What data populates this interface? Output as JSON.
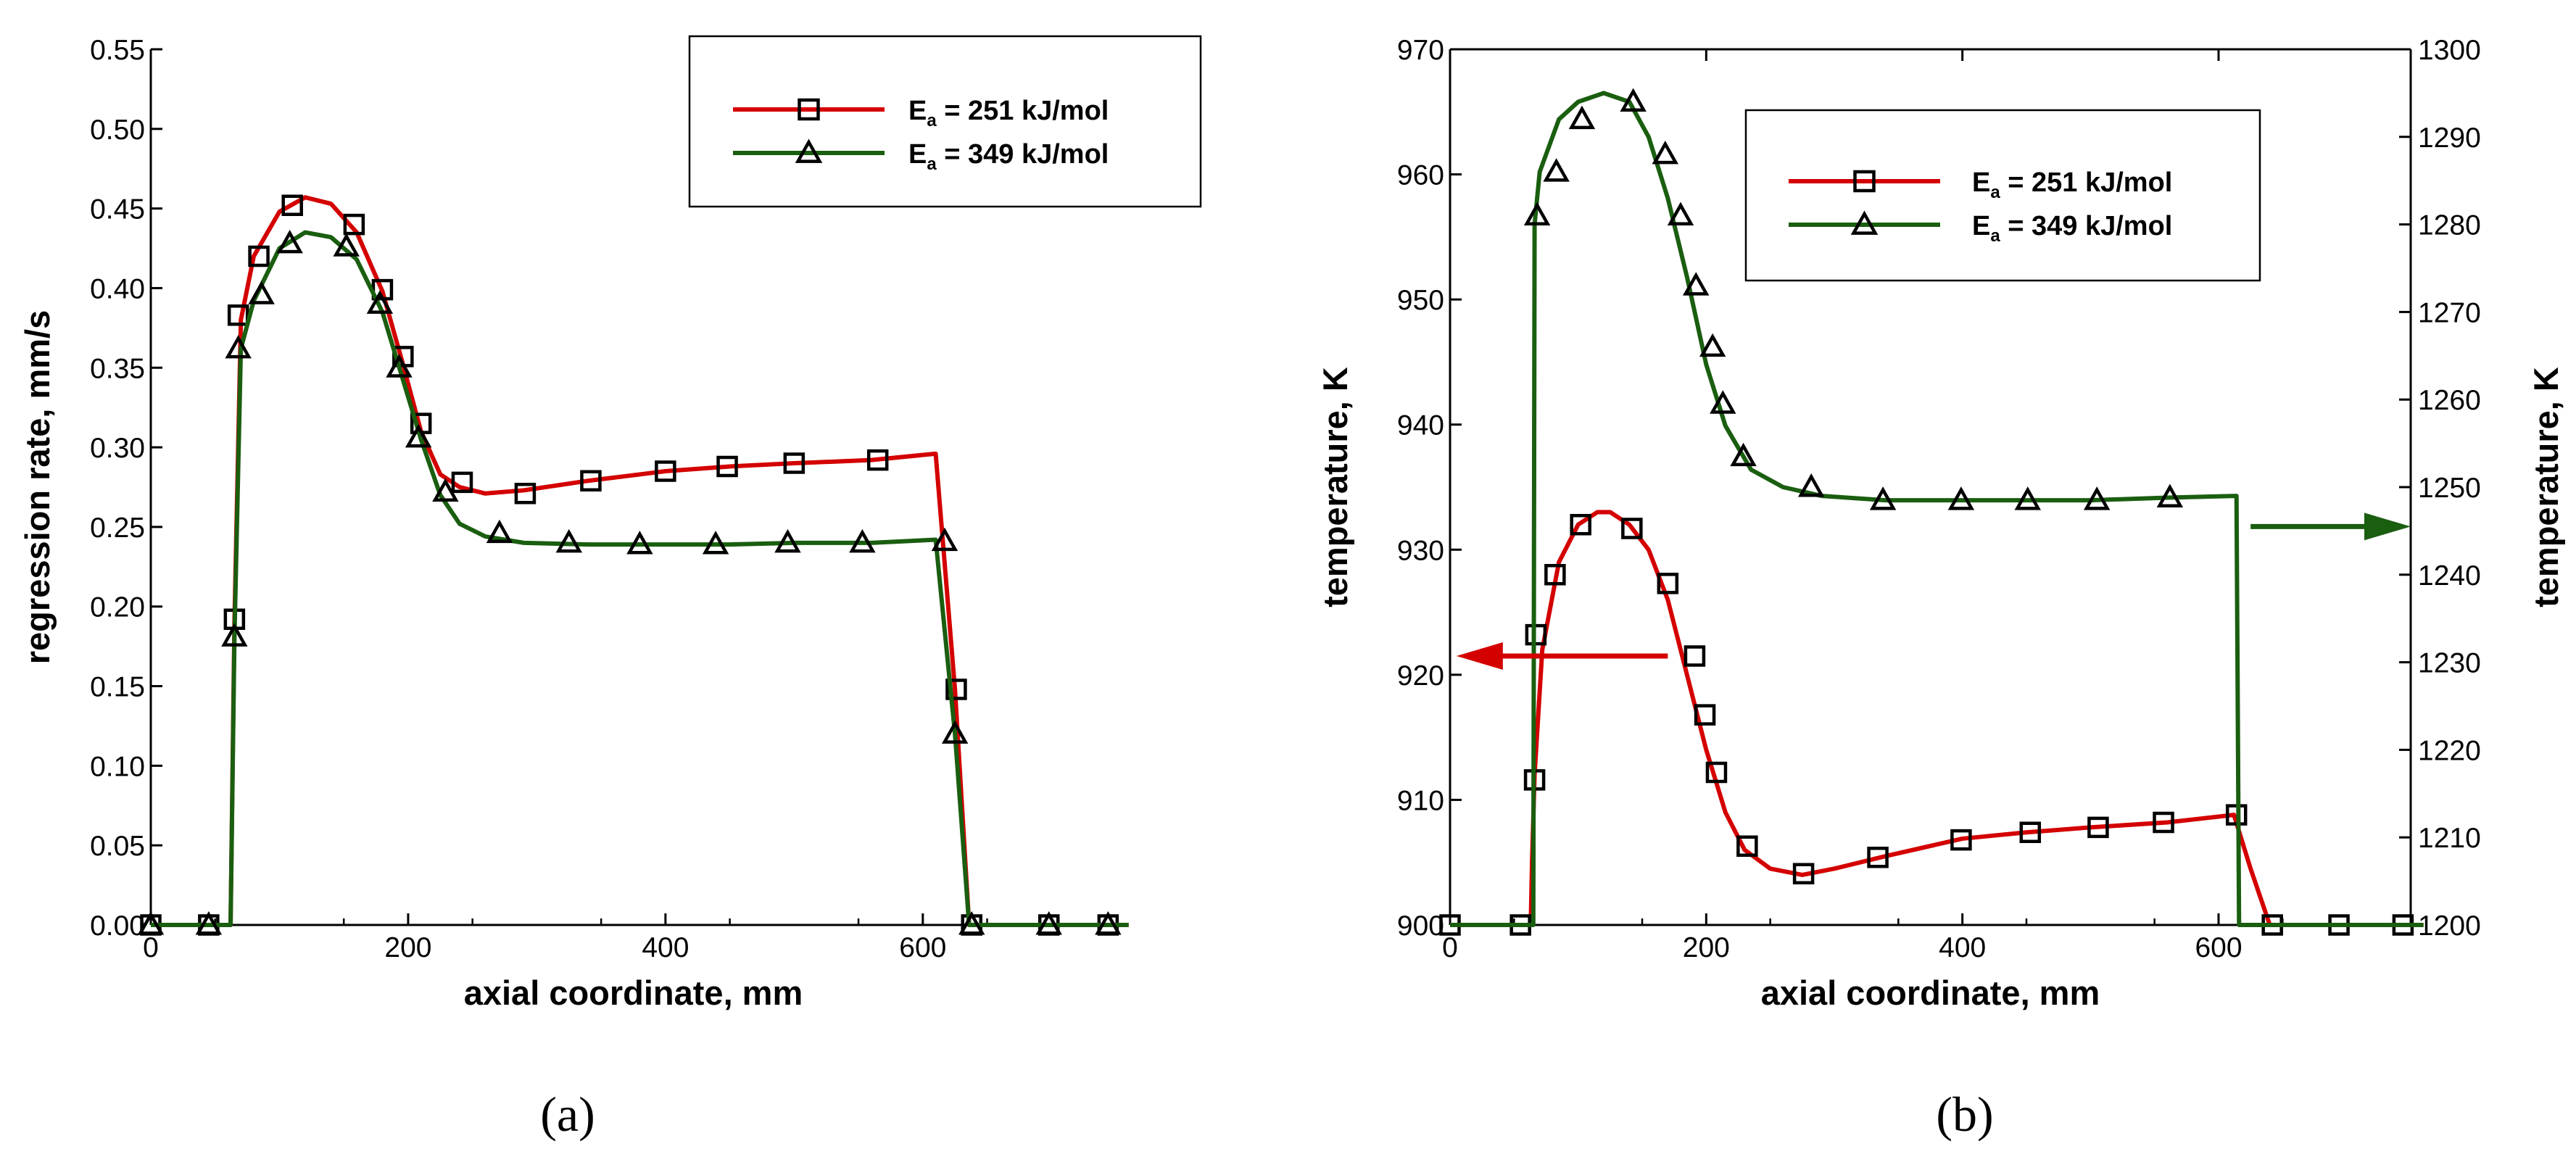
{
  "colors": {
    "series_251": "#d40000",
    "series_349": "#1a5e10",
    "axis": "#000000",
    "arrow_red": "#d40000",
    "arrow_green": "#1a5e10"
  },
  "panel_labels": {
    "a": "(a)",
    "b": "(b)"
  },
  "chart_data": [
    {
      "id": "a",
      "type": "line",
      "xlabel": "axial coordinate, mm",
      "ylabel": "regression rate, mm/s",
      "xlim": [
        0,
        750
      ],
      "ylim": [
        0,
        0.55
      ],
      "xticks": [
        "0",
        "200",
        "400",
        "600"
      ],
      "xtick_values": [
        0,
        200,
        400,
        600
      ],
      "yticks": [
        "0.00",
        "0.05",
        "0.10",
        "0.15",
        "0.20",
        "0.25",
        "0.30",
        "0.35",
        "0.40",
        "0.45",
        "0.50",
        "0.55"
      ],
      "ytick_values": [
        0,
        0.05,
        0.1,
        0.15,
        0.2,
        0.25,
        0.3,
        0.35,
        0.4,
        0.45,
        0.5,
        0.55
      ],
      "legend": {
        "position": "top-right",
        "entries": [
          {
            "prefix": "E",
            "sub": "a",
            "suffix": " = 251 kJ/mol",
            "marker": "square",
            "series": 0
          },
          {
            "prefix": "E",
            "sub": "a",
            "suffix": " = 349 kJ/mol",
            "marker": "triangle",
            "series": 1
          }
        ]
      },
      "series": [
        {
          "name": "Ea = 251 kJ/mol",
          "color_key": "series_251",
          "marker": "square",
          "x": [
            0,
            62,
            65,
            70,
            80,
            100,
            120,
            140,
            160,
            180,
            195,
            210,
            225,
            240,
            260,
            290,
            340,
            400,
            450,
            500,
            560,
            610,
            625,
            636,
            640,
            760
          ],
          "y": [
            0,
            0,
            0.19,
            0.38,
            0.42,
            0.448,
            0.457,
            0.453,
            0.435,
            0.398,
            0.355,
            0.31,
            0.283,
            0.275,
            0.271,
            0.273,
            0.279,
            0.285,
            0.288,
            0.29,
            0.292,
            0.296,
            0.148,
            0.0,
            0,
            0
          ],
          "markers_x": [
            0,
            45,
            65,
            68,
            84,
            110,
            158,
            180,
            196,
            210,
            242,
            291,
            342,
            400,
            448,
            500,
            565,
            626,
            638,
            698,
            744
          ],
          "markers_y": [
            0,
            0,
            0.192,
            0.383,
            0.42,
            0.452,
            0.44,
            0.399,
            0.357,
            0.315,
            0.278,
            0.271,
            0.279,
            0.285,
            0.288,
            0.29,
            0.292,
            0.148,
            0,
            0,
            0
          ]
        },
        {
          "name": "Ea = 349 kJ/mol",
          "color_key": "series_349",
          "marker": "triangle",
          "x": [
            0,
            62,
            65,
            70,
            80,
            100,
            120,
            140,
            160,
            180,
            195,
            210,
            225,
            240,
            260,
            290,
            340,
            400,
            450,
            500,
            560,
            610,
            625,
            636,
            640,
            760
          ],
          "y": [
            0,
            0,
            0.18,
            0.362,
            0.392,
            0.425,
            0.435,
            0.432,
            0.418,
            0.385,
            0.345,
            0.305,
            0.27,
            0.252,
            0.244,
            0.24,
            0.239,
            0.239,
            0.239,
            0.24,
            0.24,
            0.242,
            0.12,
            0.0,
            0,
            0
          ],
          "markers_x": [
            0,
            45,
            65,
            68,
            86,
            108,
            152,
            178,
            193,
            208,
            229,
            271,
            325,
            380,
            439,
            495,
            553,
            617,
            625,
            638,
            698,
            744
          ],
          "markers_y": [
            0,
            0,
            0.181,
            0.362,
            0.396,
            0.428,
            0.426,
            0.39,
            0.35,
            0.306,
            0.272,
            0.246,
            0.24,
            0.239,
            0.239,
            0.24,
            0.24,
            0.241,
            0.12,
            0,
            0,
            0
          ]
        }
      ]
    },
    {
      "id": "b",
      "type": "line",
      "xlabel": "axial coordinate, mm",
      "ylabel": "temperature, K",
      "y2label": "temperature, K",
      "xlim": [
        0,
        750
      ],
      "ylim": [
        900,
        970
      ],
      "y2lim": [
        1200,
        1300
      ],
      "xticks": [
        "0",
        "200",
        "400",
        "600"
      ],
      "xtick_values": [
        0,
        200,
        400,
        600
      ],
      "yticks": [
        "900",
        "910",
        "920",
        "930",
        "940",
        "950",
        "960",
        "970"
      ],
      "ytick_values": [
        900,
        910,
        920,
        930,
        940,
        950,
        960,
        970
      ],
      "y2ticks": [
        "1200",
        "1210",
        "1220",
        "1230",
        "1240",
        "1250",
        "1260",
        "1270",
        "1280",
        "1290",
        "1300"
      ],
      "y2tick_values": [
        1200,
        1210,
        1220,
        1230,
        1240,
        1250,
        1260,
        1270,
        1280,
        1290,
        1300
      ],
      "legend": {
        "position": "top-right",
        "entries": [
          {
            "prefix": "E",
            "sub": "a",
            "suffix": " = 251 kJ/mol",
            "marker": "square",
            "series": 0
          },
          {
            "prefix": "E",
            "sub": "a",
            "suffix": " = 349 kJ/mol",
            "marker": "triangle",
            "series": 1
          }
        ]
      },
      "annotations": [
        {
          "type": "arrow",
          "color_key": "arrow_red",
          "from": [
            170,
            921.5
          ],
          "to": [
            5,
            921.5
          ],
          "axis": "left",
          "meaning": "red curve reads on left axis"
        },
        {
          "type": "arrow",
          "color_key": "arrow_green",
          "from": [
            625,
            1245.5
          ],
          "to": [
            750,
            1245.5
          ],
          "axis": "right",
          "meaning": "green curve reads on right axis"
        }
      ],
      "series": [
        {
          "name": "Ea = 251 kJ/mol",
          "axis": "left",
          "color_key": "series_251",
          "marker": "square",
          "x": [
            0,
            63,
            64,
            66,
            72,
            85,
            100,
            115,
            125,
            140,
            155,
            170,
            185,
            200,
            215,
            230,
            250,
            275,
            300,
            340,
            400,
            450,
            500,
            560,
            612,
            625,
            640,
            760
          ],
          "y": [
            900,
            900,
            905,
            912,
            922,
            929,
            932,
            933,
            933,
            932,
            930,
            926,
            920,
            914,
            909,
            906,
            904.5,
            904,
            904.5,
            905.5,
            906.9,
            907.4,
            907.8,
            908.2,
            908.8,
            904.5,
            900,
            900
          ],
          "markers_x": [
            0,
            55,
            66,
            67,
            82,
            102,
            142,
            170,
            191,
            199,
            208,
            232,
            276,
            334,
            399,
            453,
            506,
            557,
            614,
            642,
            694,
            744
          ],
          "markers_y": [
            900,
            900,
            911.6,
            923.2,
            928,
            932,
            931.7,
            927.3,
            921.5,
            916.8,
            912.2,
            906.3,
            904.1,
            905.4,
            906.8,
            907.4,
            907.8,
            908.2,
            908.8,
            900,
            900,
            900
          ]
        },
        {
          "name": "Ea = 349 kJ/mol",
          "axis": "right",
          "color_key": "series_349",
          "marker": "triangle",
          "x": [
            0,
            65,
            66,
            70,
            85,
            100,
            120,
            140,
            155,
            170,
            185,
            200,
            215,
            235,
            260,
            290,
            340,
            400,
            450,
            500,
            560,
            614,
            616,
            760
          ],
          "y": [
            1200,
            1200,
            1280,
            1286,
            1292,
            1294,
            1295,
            1294,
            1290,
            1283,
            1274,
            1264,
            1257,
            1252,
            1250,
            1249,
            1248.5,
            1248.5,
            1248.5,
            1248.5,
            1248.8,
            1249,
            1200,
            1200
          ],
          "markers_x": [
            68,
            83,
            103,
            143,
            168,
            180,
            192,
            205,
            213,
            229,
            282,
            338,
            399,
            451,
            505,
            562
          ],
          "markers_y": [
            1281,
            1286,
            1292,
            1294,
            1288,
            1281,
            1273,
            1266,
            1259.5,
            1253.5,
            1250,
            1248.5,
            1248.5,
            1248.5,
            1248.5,
            1248.8
          ]
        }
      ]
    }
  ]
}
